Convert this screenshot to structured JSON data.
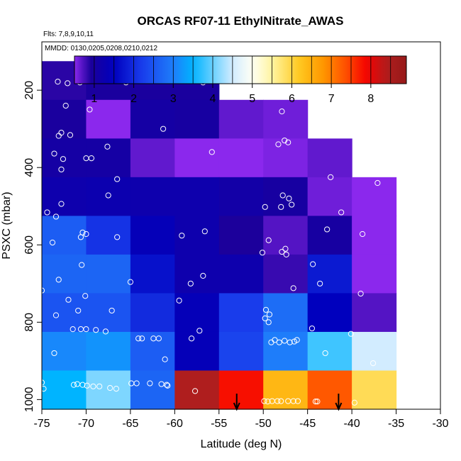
{
  "chart_data": {
    "type": "heatmap",
    "title": "ORCAS RF07-11 EthylNitrate_AWAS",
    "flights_label": "Flts: 7,8,9,10,11",
    "dates_label": "MMDD: 0130,0205,0208,0210,0212",
    "xlabel": "Latitude (deg N)",
    "ylabel": "PSXC (mbar)",
    "xlim": [
      -75,
      -30
    ],
    "ylim": [
      1025,
      75
    ],
    "x_ticks": [
      "-75",
      "-70",
      "-65",
      "-60",
      "-55",
      "-50",
      "-45",
      "-40",
      "-35",
      "-30"
    ],
    "y_ticks": [
      "200",
      "400",
      "600",
      "800",
      "1000"
    ],
    "colorbar": {
      "range": [
        0.5,
        8.9
      ],
      "ticks": [
        "1",
        "2",
        "3",
        "4",
        "5",
        "6",
        "7",
        "8"
      ]
    },
    "x_bin_edges": [
      -75,
      -70,
      -65,
      -60,
      -55,
      -50,
      -45,
      -40,
      -35
    ],
    "y_bin_edges": [
      125,
      225,
      325,
      425,
      525,
      625,
      725,
      825,
      925,
      1025
    ],
    "cells": [
      [
        0.85,
        0.95,
        0.95,
        0.95,
        null,
        null,
        null,
        null
      ],
      [
        0.95,
        0.4,
        1.05,
        1.0,
        0.65,
        0.6,
        null,
        null
      ],
      [
        1.05,
        1.05,
        0.65,
        0.35,
        0.45,
        0.55,
        0.65,
        null
      ],
      [
        1.2,
        1.25,
        1.2,
        1.2,
        1.1,
        1.0,
        0.6,
        0.4
      ],
      [
        2.6,
        2.1,
        1.4,
        1.2,
        0.9,
        0.7,
        1.0,
        0.5
      ],
      [
        2.7,
        2.7,
        1.7,
        1.2,
        1.2,
        0.8,
        1.8,
        0.5
      ],
      [
        2.5,
        2.5,
        2.0,
        1.4,
        2.2,
        2.8,
        1.5,
        0.7
      ],
      [
        3.1,
        3.2,
        2.6,
        1.4,
        2.3,
        3.0,
        3.8,
        4.5
      ],
      [
        3.5,
        4.1,
        2.7,
        8.4,
        7.8,
        6.4,
        7.3,
        5.9
      ]
    ],
    "points": [
      [
        -73.2,
        178
      ],
      [
        -72.1,
        182
      ],
      [
        -70.7,
        180
      ],
      [
        -65.5,
        180
      ],
      [
        -56.8,
        180
      ],
      [
        -72.3,
        240
      ],
      [
        -69.6,
        250
      ],
      [
        -47.9,
        255
      ],
      [
        -61.3,
        300
      ],
      [
        -72.8,
        310
      ],
      [
        -73.1,
        318
      ],
      [
        -71.8,
        316
      ],
      [
        -67.6,
        346
      ],
      [
        -73.6,
        364
      ],
      [
        -72.6,
        378
      ],
      [
        -70.0,
        376
      ],
      [
        -69.4,
        376
      ],
      [
        -55.8,
        360
      ],
      [
        -47.6,
        330
      ],
      [
        -48.3,
        340
      ],
      [
        -47.2,
        335
      ],
      [
        -72.8,
        405
      ],
      [
        -66.5,
        430
      ],
      [
        -42.4,
        425
      ],
      [
        -37.1,
        440
      ],
      [
        -67.5,
        472
      ],
      [
        -47.8,
        472
      ],
      [
        -47.1,
        480
      ],
      [
        -72.8,
        494
      ],
      [
        -46.8,
        496
      ],
      [
        -49.8,
        502
      ],
      [
        -48.0,
        502
      ],
      [
        -41.2,
        516
      ],
      [
        -74.4,
        516
      ],
      [
        -73.4,
        527
      ],
      [
        -42.8,
        560
      ],
      [
        -56.6,
        565
      ],
      [
        -70.4,
        568
      ],
      [
        -70.0,
        572
      ],
      [
        -70.6,
        580
      ],
      [
        -66.5,
        580
      ],
      [
        -59.2,
        576
      ],
      [
        -49.4,
        588
      ],
      [
        -38.8,
        572
      ],
      [
        -73.8,
        594
      ],
      [
        -47.9,
        618
      ],
      [
        -47.5,
        610
      ],
      [
        -47.4,
        625
      ],
      [
        -50.1,
        620
      ],
      [
        -70.5,
        652
      ],
      [
        -44.4,
        650
      ],
      [
        -73.1,
        690
      ],
      [
        -65.0,
        696
      ],
      [
        -58.2,
        700
      ],
      [
        -56.8,
        680
      ],
      [
        -43.6,
        700
      ],
      [
        -46.6,
        712
      ],
      [
        -75.0,
        718
      ],
      [
        -59.5,
        744
      ],
      [
        -39.0,
        726
      ],
      [
        -72.0,
        742
      ],
      [
        -70.1,
        732
      ],
      [
        -73.4,
        782
      ],
      [
        -70.9,
        770
      ],
      [
        -67.1,
        770
      ],
      [
        -49.8,
        790
      ],
      [
        -49.7,
        768
      ],
      [
        -49.3,
        780
      ],
      [
        -49.4,
        800
      ],
      [
        -71.5,
        818
      ],
      [
        -70.6,
        818
      ],
      [
        -70.0,
        818
      ],
      [
        -68.9,
        820
      ],
      [
        -67.8,
        824
      ],
      [
        -57.2,
        822
      ],
      [
        -44.5,
        816
      ],
      [
        -40.1,
        830
      ],
      [
        -49.1,
        852
      ],
      [
        -48.7,
        846
      ],
      [
        -48.2,
        852
      ],
      [
        -47.6,
        848
      ],
      [
        -47.0,
        852
      ],
      [
        -46.5,
        850
      ],
      [
        -46.2,
        846
      ],
      [
        -64.1,
        842
      ],
      [
        -63.7,
        842
      ],
      [
        -62.4,
        842
      ],
      [
        -61.8,
        842
      ],
      [
        -58.1,
        842
      ],
      [
        -61.1,
        896
      ],
      [
        -73.6,
        880
      ],
      [
        -43.0,
        880
      ],
      [
        -37.6,
        906
      ],
      [
        -75.0,
        956
      ],
      [
        -74.8,
        972
      ],
      [
        -71.4,
        962
      ],
      [
        -71.0,
        960
      ],
      [
        -70.4,
        962
      ],
      [
        -69.9,
        964
      ],
      [
        -69.2,
        966
      ],
      [
        -68.5,
        966
      ],
      [
        -67.3,
        970
      ],
      [
        -66.6,
        972
      ],
      [
        -64.9,
        958
      ],
      [
        -64.3,
        958
      ],
      [
        -62.8,
        958
      ],
      [
        -61.5,
        960
      ],
      [
        -60.9,
        962
      ],
      [
        -60.8,
        964
      ],
      [
        -57.7,
        978
      ],
      [
        -49.9,
        1004
      ],
      [
        -49.5,
        1005
      ],
      [
        -49.0,
        1004
      ],
      [
        -48.4,
        1004
      ],
      [
        -48.0,
        1004
      ],
      [
        -47.2,
        1004
      ],
      [
        -46.6,
        1004
      ],
      [
        -46.1,
        1004
      ],
      [
        -43.9,
        1005
      ],
      [
        -44.1,
        1005
      ],
      [
        -39.7,
        1008
      ]
    ],
    "arrows_lat": [
      -53,
      -41.5
    ]
  }
}
